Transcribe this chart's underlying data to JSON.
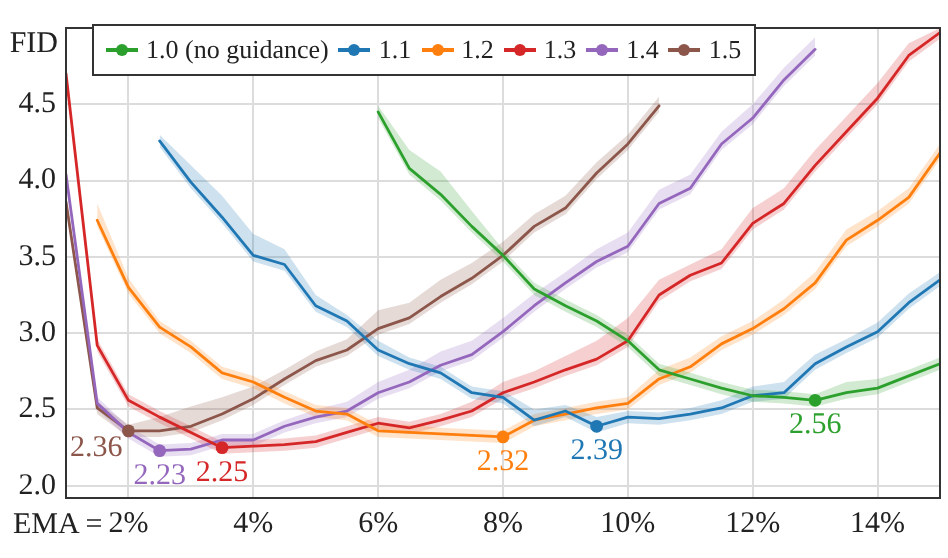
{
  "chart_data": {
    "type": "line",
    "xlabel": "EMA =",
    "ylabel": "FID",
    "x": [
      1,
      1.5,
      2,
      2.5,
      3,
      3.5,
      4,
      4.5,
      5,
      5.5,
      6,
      6.5,
      7,
      7.5,
      8,
      8.5,
      9,
      9.5,
      10,
      10.5,
      11,
      11.5,
      12,
      12.5,
      13,
      13.5,
      14,
      14.5,
      15
    ],
    "series": [
      {
        "name": "1.0 (no guidance)",
        "color": "#2ca02c",
        "values": [
          null,
          null,
          null,
          null,
          null,
          null,
          null,
          null,
          null,
          null,
          4.45,
          4.08,
          3.91,
          3.7,
          3.51,
          3.29,
          3.18,
          3.08,
          2.95,
          2.76,
          2.7,
          2.64,
          2.59,
          2.58,
          2.56,
          2.61,
          2.64,
          2.72,
          2.8
        ],
        "lower": [
          null,
          null,
          null,
          null,
          null,
          null,
          null,
          null,
          null,
          null,
          4.41,
          4.04,
          3.87,
          3.66,
          3.47,
          3.25,
          3.14,
          3.04,
          2.91,
          2.72,
          2.66,
          2.6,
          2.55,
          2.54,
          2.52,
          2.57,
          2.6,
          2.68,
          2.76
        ],
        "upper": [
          null,
          null,
          null,
          null,
          null,
          null,
          null,
          null,
          null,
          null,
          4.49,
          4.2,
          4.06,
          3.8,
          3.55,
          3.33,
          3.22,
          3.12,
          2.99,
          2.8,
          2.74,
          2.68,
          2.63,
          2.62,
          2.6,
          2.68,
          2.7,
          2.76,
          2.84
        ]
      },
      {
        "name": "1.1",
        "color": "#1f77b4",
        "values": [
          null,
          null,
          null,
          4.26,
          3.99,
          3.76,
          3.51,
          3.45,
          3.18,
          3.08,
          2.89,
          2.8,
          2.74,
          2.61,
          2.58,
          2.43,
          2.49,
          2.39,
          2.45,
          2.44,
          2.47,
          2.51,
          2.59,
          2.61,
          2.8,
          2.91,
          3.01,
          3.2,
          3.35
        ],
        "lower": [
          null,
          null,
          null,
          4.22,
          3.95,
          3.72,
          3.47,
          3.41,
          3.14,
          3.04,
          2.85,
          2.76,
          2.7,
          2.57,
          2.54,
          2.39,
          2.45,
          2.35,
          2.41,
          2.4,
          2.43,
          2.47,
          2.55,
          2.57,
          2.76,
          2.87,
          2.97,
          3.16,
          3.31
        ],
        "upper": [
          null,
          null,
          null,
          4.3,
          4.1,
          3.9,
          3.65,
          3.55,
          3.25,
          3.12,
          2.95,
          2.84,
          2.78,
          2.65,
          2.62,
          2.5,
          2.53,
          2.45,
          2.49,
          2.48,
          2.51,
          2.56,
          2.65,
          2.68,
          2.86,
          2.96,
          3.07,
          3.26,
          3.4
        ]
      },
      {
        "name": "1.2",
        "color": "#ff7f0e",
        "values": [
          null,
          3.74,
          3.3,
          3.04,
          2.91,
          2.74,
          2.68,
          2.58,
          2.49,
          2.47,
          2.36,
          2.35,
          2.34,
          2.33,
          2.32,
          2.43,
          2.47,
          2.51,
          2.54,
          2.7,
          2.78,
          2.93,
          3.03,
          3.16,
          3.33,
          3.61,
          3.74,
          3.89,
          4.18
        ],
        "lower": [
          null,
          3.7,
          3.26,
          3.0,
          2.87,
          2.7,
          2.64,
          2.54,
          2.45,
          2.43,
          2.32,
          2.31,
          2.3,
          2.29,
          2.28,
          2.39,
          2.43,
          2.47,
          2.5,
          2.66,
          2.74,
          2.89,
          2.99,
          3.12,
          3.29,
          3.57,
          3.7,
          3.85,
          4.14
        ],
        "upper": [
          null,
          3.85,
          3.36,
          3.08,
          2.95,
          2.78,
          2.72,
          2.62,
          2.53,
          2.51,
          2.4,
          2.4,
          2.38,
          2.37,
          2.36,
          2.47,
          2.51,
          2.55,
          2.58,
          2.76,
          2.84,
          2.98,
          3.08,
          3.22,
          3.4,
          3.68,
          3.8,
          3.95,
          4.24
        ]
      },
      {
        "name": "1.3",
        "color": "#d62728",
        "values": [
          4.7,
          2.92,
          2.56,
          2.45,
          2.35,
          2.25,
          2.26,
          2.27,
          2.29,
          2.35,
          2.41,
          2.38,
          2.43,
          2.49,
          2.61,
          2.68,
          2.76,
          2.83,
          2.95,
          3.25,
          3.38,
          3.46,
          3.72,
          3.85,
          4.1,
          4.32,
          4.54,
          4.82,
          4.97
        ],
        "lower": [
          4.66,
          2.88,
          2.52,
          2.41,
          2.31,
          2.21,
          2.22,
          2.23,
          2.25,
          2.31,
          2.37,
          2.34,
          2.39,
          2.45,
          2.57,
          2.64,
          2.72,
          2.79,
          2.91,
          3.21,
          3.34,
          3.42,
          3.68,
          3.81,
          4.06,
          4.28,
          4.5,
          4.78,
          4.93
        ],
        "upper": [
          4.74,
          2.96,
          2.6,
          2.49,
          2.39,
          2.29,
          2.3,
          2.31,
          2.33,
          2.39,
          2.45,
          2.42,
          2.47,
          2.55,
          2.68,
          2.75,
          2.85,
          2.95,
          3.1,
          3.35,
          3.45,
          3.55,
          3.82,
          3.95,
          4.2,
          4.42,
          4.64,
          4.9,
          5.0
        ]
      },
      {
        "name": "1.4",
        "color": "#9467bd",
        "values": [
          4.04,
          2.54,
          2.35,
          2.23,
          2.24,
          2.3,
          2.3,
          2.39,
          2.45,
          2.49,
          2.61,
          2.68,
          2.79,
          2.86,
          3.01,
          3.18,
          3.33,
          3.47,
          3.57,
          3.85,
          3.95,
          4.24,
          4.41,
          4.66,
          4.86,
          null,
          null,
          null,
          null
        ],
        "lower": [
          4.0,
          2.5,
          2.31,
          2.19,
          2.2,
          2.26,
          2.26,
          2.35,
          2.41,
          2.45,
          2.57,
          2.64,
          2.75,
          2.82,
          2.97,
          3.14,
          3.29,
          3.43,
          3.53,
          3.81,
          3.91,
          4.2,
          4.37,
          4.62,
          4.82,
          null,
          null,
          null,
          null
        ],
        "upper": [
          4.08,
          2.58,
          2.39,
          2.27,
          2.28,
          2.34,
          2.34,
          2.43,
          2.5,
          2.55,
          2.68,
          2.76,
          2.88,
          2.95,
          3.1,
          3.26,
          3.4,
          3.55,
          3.66,
          3.94,
          4.04,
          4.32,
          4.5,
          4.74,
          4.94,
          null,
          null,
          null,
          null
        ]
      },
      {
        "name": "1.5",
        "color": "#8c564b",
        "values": [
          3.86,
          2.51,
          2.36,
          2.36,
          2.39,
          2.47,
          2.57,
          2.7,
          2.82,
          2.89,
          3.03,
          3.1,
          3.24,
          3.36,
          3.51,
          3.7,
          3.82,
          4.05,
          4.24,
          4.49,
          null,
          null,
          null,
          null,
          null,
          null,
          null,
          null,
          null
        ],
        "lower": [
          3.82,
          2.47,
          2.32,
          2.32,
          2.35,
          2.43,
          2.53,
          2.66,
          2.78,
          2.85,
          2.99,
          3.06,
          3.2,
          3.32,
          3.47,
          3.66,
          3.78,
          4.01,
          4.2,
          4.45,
          null,
          null,
          null,
          null,
          null,
          null,
          null,
          null,
          null
        ],
        "upper": [
          3.9,
          2.55,
          2.4,
          2.45,
          2.52,
          2.58,
          2.65,
          2.76,
          2.88,
          2.96,
          3.15,
          3.2,
          3.35,
          3.46,
          3.6,
          3.78,
          3.9,
          4.12,
          4.3,
          4.55,
          null,
          null,
          null,
          null,
          null,
          null,
          null,
          null,
          null
        ]
      }
    ],
    "annotations": [
      {
        "text": "2.23",
        "x": 2.5,
        "y": 2.23
      },
      {
        "text": "2.36",
        "x": 2,
        "y": 2.36
      },
      {
        "text": "2.25",
        "x": 3.5,
        "y": 2.25
      },
      {
        "text": "2.32",
        "x": 8,
        "y": 2.32
      },
      {
        "text": "2.39",
        "x": 9.5,
        "y": 2.39
      },
      {
        "text": "2.56",
        "x": 13,
        "y": 2.56
      }
    ],
    "xlim": [
      1,
      15
    ],
    "xticks": [
      {
        "value": 2,
        "label": "2%"
      },
      {
        "value": 4,
        "label": "4%"
      },
      {
        "value": 6,
        "label": "6%"
      },
      {
        "value": 8,
        "label": "8%"
      },
      {
        "value": 10,
        "label": "10%"
      },
      {
        "value": 12,
        "label": "12%"
      },
      {
        "value": 14,
        "label": "14%"
      }
    ],
    "ylim": [
      1.92,
      5.0
    ],
    "yticks": [
      {
        "value": 2,
        "label": "2.0"
      },
      {
        "value": 2.5,
        "label": "2.5"
      },
      {
        "value": 3,
        "label": "3.0"
      },
      {
        "value": 3.5,
        "label": "3.5"
      },
      {
        "value": 4,
        "label": "4.0"
      },
      {
        "value": 4.5,
        "label": "4.5"
      }
    ],
    "grid": true,
    "legend": "top left"
  }
}
